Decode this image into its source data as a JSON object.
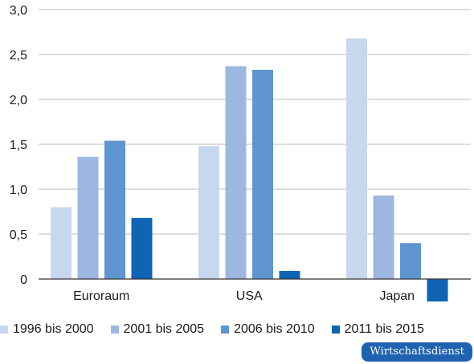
{
  "chart_data": {
    "type": "bar",
    "categories": [
      "Euroraum",
      "USA",
      "Japan"
    ],
    "series": [
      {
        "name": "1996 bis 2000",
        "color": "#c7d7ee",
        "values": [
          0.8,
          1.48,
          2.68
        ]
      },
      {
        "name": "2001 bis 2005",
        "color": "#9cb8e0",
        "values": [
          1.36,
          2.37,
          0.93
        ]
      },
      {
        "name": "2006 bis 2010",
        "color": "#5f95d1",
        "values": [
          1.54,
          2.33,
          0.4
        ]
      },
      {
        "name": "2011 bis 2015",
        "color": "#0f64b4",
        "values": [
          0.68,
          0.09,
          -0.25
        ]
      }
    ],
    "yticks": [
      "0",
      "0,5",
      "1,0",
      "1,5",
      "2,0",
      "2,5",
      "3,0"
    ],
    "ylim": [
      0,
      3.0
    ],
    "grid": true,
    "legend_position": "bottom"
  },
  "brand": {
    "label": "Wirtschaftsdienst",
    "color": "#1f63b0"
  }
}
